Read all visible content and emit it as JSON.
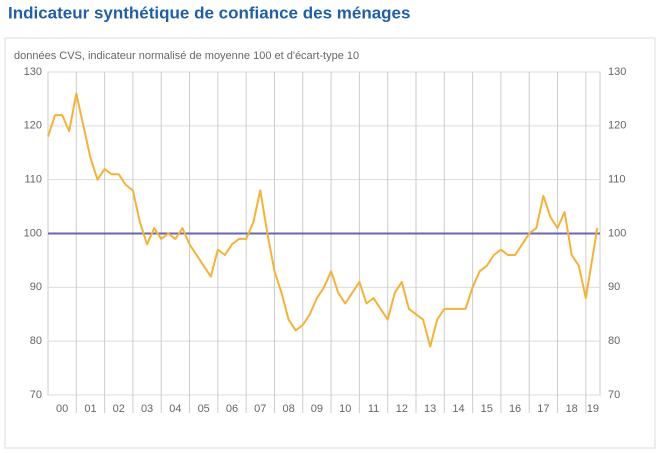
{
  "chart_data": {
    "type": "line",
    "title": "Indicateur synthétique de confiance des ménages",
    "subtitle": "données CVS, indicateur normalisé de moyenne 100 et d'écart-type 10",
    "x": [
      0,
      0.25,
      0.5,
      0.75,
      1,
      1.25,
      1.5,
      1.75,
      2,
      2.25,
      2.5,
      2.75,
      3,
      3.25,
      3.5,
      3.75,
      4,
      4.25,
      4.5,
      4.75,
      5,
      5.25,
      5.5,
      5.75,
      6,
      6.25,
      6.5,
      6.75,
      7,
      7.25,
      7.5,
      7.75,
      8,
      8.25,
      8.5,
      8.75,
      9,
      9.25,
      9.5,
      9.75,
      10,
      10.25,
      10.5,
      10.75,
      11,
      11.25,
      11.5,
      11.75,
      12,
      12.25,
      12.5,
      12.75,
      13,
      13.25,
      13.5,
      13.75,
      14,
      14.25,
      14.5,
      14.75,
      15,
      15.25,
      15.5,
      15.75,
      16,
      16.25,
      16.5,
      16.75,
      17,
      17.25,
      17.5,
      17.75,
      18,
      18.25,
      18.5,
      18.75,
      19,
      19.25,
      19.4
    ],
    "series": [
      {
        "color": "#f5b335",
        "values": [
          118,
          122,
          122,
          119,
          126,
          120,
          114,
          110,
          112,
          111,
          111,
          109,
          108,
          102,
          98,
          101,
          99,
          100,
          99,
          101,
          98,
          96,
          94,
          92,
          97,
          96,
          98,
          99,
          99,
          102,
          108,
          100,
          93,
          89,
          84,
          82,
          83,
          85,
          88,
          90,
          93,
          89,
          87,
          89,
          91,
          87,
          88,
          86,
          84,
          89,
          91,
          86,
          85,
          84,
          79,
          84,
          86,
          86,
          86,
          86,
          90,
          93,
          94,
          96,
          97,
          96,
          96,
          98,
          100,
          101,
          107,
          103,
          101,
          104,
          96,
          94,
          88,
          96,
          101
        ]
      }
    ],
    "reference_line": 100,
    "reference_color": "#6b63b5",
    "xlim": [
      0,
      19.5
    ],
    "xticks": [
      {
        "value": 0.5,
        "label": "00"
      },
      {
        "value": 1.5,
        "label": "01"
      },
      {
        "value": 2.5,
        "label": "02"
      },
      {
        "value": 3.5,
        "label": "03"
      },
      {
        "value": 4.5,
        "label": "04"
      },
      {
        "value": 5.5,
        "label": "05"
      },
      {
        "value": 6.5,
        "label": "06"
      },
      {
        "value": 7.5,
        "label": "07"
      },
      {
        "value": 8.5,
        "label": "08"
      },
      {
        "value": 9.5,
        "label": "09"
      },
      {
        "value": 10.5,
        "label": "10"
      },
      {
        "value": 11.5,
        "label": "11"
      },
      {
        "value": 12.5,
        "label": "12"
      },
      {
        "value": 13.5,
        "label": "13"
      },
      {
        "value": 14.5,
        "label": "14"
      },
      {
        "value": 15.5,
        "label": "15"
      },
      {
        "value": 16.5,
        "label": "16"
      },
      {
        "value": 17.5,
        "label": "17"
      },
      {
        "value": 18.5,
        "label": "18"
      },
      {
        "value": 19.25,
        "label": "19"
      }
    ],
    "ylim": [
      70,
      130
    ],
    "yticks": [
      70,
      80,
      90,
      100,
      110,
      120,
      130
    ],
    "grid": true
  }
}
